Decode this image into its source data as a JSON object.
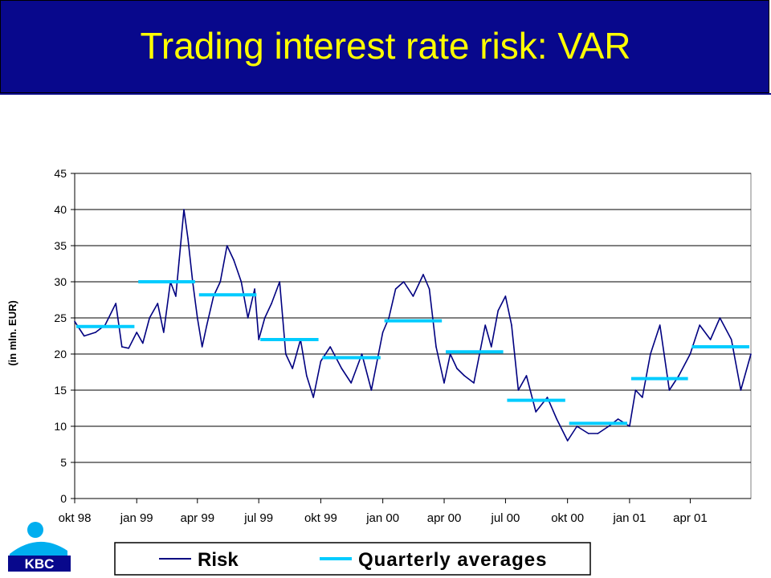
{
  "slide": {
    "title": "Trading interest rate risk: VAR"
  },
  "logo": {
    "text": "KBC",
    "icon": "kbc-logo-person-icon"
  },
  "colors": {
    "header": "#08088c",
    "title": "#ffff00",
    "risk": "#000080",
    "quarterly": "#00ccff",
    "grid": "#000000"
  },
  "chart_data": {
    "type": "line",
    "title": "",
    "ylabel": "(in mln. EUR)",
    "xlabel": "",
    "ylim": [
      0,
      45
    ],
    "yticks": [
      0,
      5,
      10,
      15,
      20,
      25,
      30,
      35,
      40,
      45
    ],
    "x_start": "1998-10-01",
    "x_end": "2001-06-30",
    "xticks": [
      {
        "date": "1998-10-01",
        "label": "okt 98"
      },
      {
        "date": "1999-01-01",
        "label": "jan 99"
      },
      {
        "date": "1999-04-01",
        "label": "apr 99"
      },
      {
        "date": "1999-07-01",
        "label": "jul 99"
      },
      {
        "date": "1999-10-01",
        "label": "okt 99"
      },
      {
        "date": "2000-01-01",
        "label": "jan 00"
      },
      {
        "date": "2000-04-01",
        "label": "apr 00"
      },
      {
        "date": "2000-07-01",
        "label": "jul 00"
      },
      {
        "date": "2000-10-01",
        "label": "okt 00"
      },
      {
        "date": "2001-01-01",
        "label": "jan 01"
      },
      {
        "date": "2001-04-01",
        "label": "apr 01"
      }
    ],
    "grid": true,
    "legend_position": "bottom",
    "series": [
      {
        "name": "Risk",
        "x": [
          "1998-10-01",
          "1998-10-15",
          "1998-11-01",
          "1998-11-15",
          "1998-12-01",
          "1998-12-10",
          "1998-12-20",
          "1999-01-01",
          "1999-01-10",
          "1999-01-20",
          "1999-02-01",
          "1999-02-10",
          "1999-02-20",
          "1999-02-28",
          "1999-03-05",
          "1999-03-12",
          "1999-03-18",
          "1999-03-25",
          "1999-04-01",
          "1999-04-08",
          "1999-04-15",
          "1999-04-25",
          "1999-05-05",
          "1999-05-15",
          "1999-05-25",
          "1999-06-05",
          "1999-06-15",
          "1999-06-25",
          "1999-07-01",
          "1999-07-10",
          "1999-07-20",
          "1999-08-01",
          "1999-08-10",
          "1999-08-20",
          "1999-09-01",
          "1999-09-10",
          "1999-09-20",
          "1999-10-01",
          "1999-10-15",
          "1999-11-01",
          "1999-11-15",
          "1999-12-01",
          "1999-12-15",
          "2000-01-01",
          "2000-01-10",
          "2000-01-20",
          "2000-02-01",
          "2000-02-15",
          "2000-03-01",
          "2000-03-10",
          "2000-03-20",
          "2000-04-01",
          "2000-04-10",
          "2000-04-20",
          "2000-05-01",
          "2000-05-15",
          "2000-06-01",
          "2000-06-10",
          "2000-06-20",
          "2000-07-01",
          "2000-07-10",
          "2000-07-20",
          "2000-08-01",
          "2000-08-15",
          "2000-09-01",
          "2000-09-15",
          "2000-10-01",
          "2000-10-15",
          "2000-11-01",
          "2000-11-15",
          "2000-12-01",
          "2000-12-15",
          "2001-01-01",
          "2001-01-10",
          "2001-01-20",
          "2001-02-01",
          "2001-02-15",
          "2001-03-01",
          "2001-03-15",
          "2001-04-01",
          "2001-04-15",
          "2001-05-01",
          "2001-05-15",
          "2001-06-01",
          "2001-06-15",
          "2001-06-30"
        ],
        "values": [
          24.5,
          22.5,
          23,
          24,
          27,
          21,
          20.8,
          23,
          21.5,
          25,
          27,
          23,
          30,
          28,
          33,
          40,
          36,
          30,
          25,
          21,
          24,
          28,
          30,
          35,
          33,
          30,
          25,
          29,
          22,
          25,
          27,
          30,
          20,
          18,
          22,
          17,
          14,
          19,
          21,
          18,
          16,
          20,
          15,
          23,
          25,
          29,
          30,
          28,
          31,
          29,
          21,
          16,
          20,
          18,
          17,
          16,
          24,
          21,
          26,
          28,
          24,
          15,
          17,
          12,
          14,
          11,
          8,
          10,
          9,
          9,
          10,
          11,
          10,
          15,
          14,
          20,
          24,
          15,
          17,
          20,
          24,
          22,
          25,
          22,
          15,
          20
        ]
      },
      {
        "name": "Quarterly averages",
        "segments": [
          {
            "start": "1998-10-01",
            "end": "1998-12-31",
            "value": 23.8
          },
          {
            "start": "1999-01-01",
            "end": "1999-03-31",
            "value": 30
          },
          {
            "start": "1999-04-01",
            "end": "1999-06-30",
            "value": 28.2
          },
          {
            "start": "1999-07-01",
            "end": "1999-09-30",
            "value": 22
          },
          {
            "start": "1999-10-01",
            "end": "1999-12-31",
            "value": 19.5
          },
          {
            "start": "2000-01-01",
            "end": "2000-03-31",
            "value": 24.6
          },
          {
            "start": "2000-04-01",
            "end": "2000-06-30",
            "value": 20.3
          },
          {
            "start": "2000-07-01",
            "end": "2000-09-30",
            "value": 13.6
          },
          {
            "start": "2000-10-01",
            "end": "2000-12-31",
            "value": 10.4
          },
          {
            "start": "2001-01-01",
            "end": "2001-03-31",
            "value": 16.6
          },
          {
            "start": "2001-04-01",
            "end": "2001-06-30",
            "value": 21
          }
        ]
      }
    ]
  }
}
